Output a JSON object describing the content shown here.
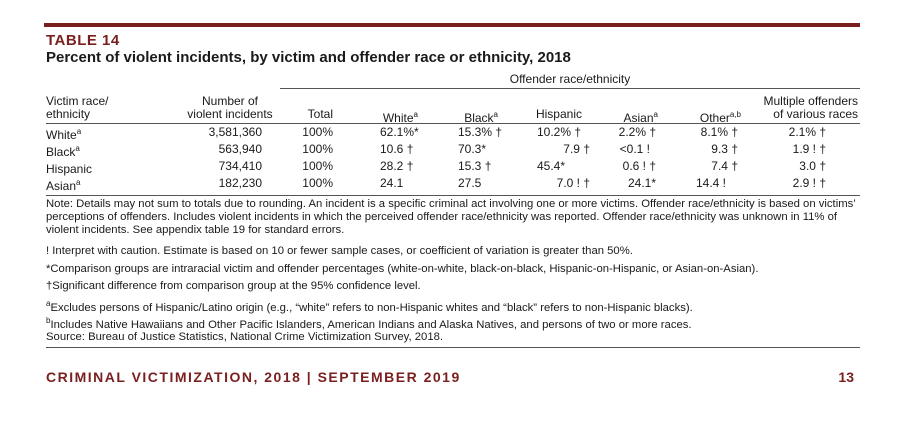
{
  "table_label": "TABLE 14",
  "table_title": "Percent of violent incidents, by victim and offender race or ethnicity, 2018",
  "group_header": "Offender race/ethnicity",
  "columns": {
    "victim_line1": "Victim race/",
    "victim_line2": "ethnicity",
    "number_line1": "Number of",
    "number_line2": "violent incidents",
    "total": "Total",
    "white": "White",
    "white_sup": "a",
    "black": "Black",
    "black_sup": "a",
    "hispanic": "Hispanic",
    "asian": "Asian",
    "asian_sup": "a",
    "other": "Other",
    "other_sup": "a,b",
    "multiple_line1": "Multiple offenders",
    "multiple_line2": "of various races"
  },
  "rows": [
    {
      "victim": "White",
      "victim_sup": "a",
      "number": "3,581,360",
      "total": "100%",
      "white": "62.1%*",
      "black": "15.3% †",
      "hispanic": "10.2% †",
      "asian": "2.2% †",
      "other": "8.1% †",
      "multiple": "2.1% †"
    },
    {
      "victim": "Black",
      "victim_sup": "a",
      "number": "563,940",
      "total": "100%",
      "white": "10.6 †",
      "black": "70.3*",
      "hispanic": "7.9 †",
      "asian": "<0.1 !",
      "other": "9.3 †",
      "multiple": "1.9 ! †"
    },
    {
      "victim": "Hispanic",
      "victim_sup": "",
      "number": "734,410",
      "total": "100%",
      "white": "28.2 †",
      "black": "15.3 †",
      "hispanic": "45.4*",
      "asian": "0.6 ! †",
      "other": "7.4 †",
      "multiple": "3.0 †"
    },
    {
      "victim": "Asian",
      "victim_sup": "a",
      "number": "182,230",
      "total": "100%",
      "white": "24.1",
      "black": "27.5",
      "hispanic": "7.0 ! †",
      "asian": "24.1*",
      "other": "14.4 !",
      "multiple": "2.9 ! †"
    }
  ],
  "notes": {
    "main": "Note: Details may not sum to totals due to rounding. An incident is a specific criminal act involving one or more victims. Offender race/ethnicity is based on victims’ perceptions of offenders. Includes violent incidents in which the perceived offender race/ethnicity was reported. Offender race/ethnicity was unknown in 11% of violent incidents. See appendix table 19 for standard errors.",
    "caution": "! Interpret with caution. Estimate is based on 10 or fewer sample cases, or coefficient of variation is greater than 50%.",
    "comparison": "*Comparison groups are intraracial victim and offender percentages (white-on-white, black-on-black, Hispanic-on-Hispanic, or Asian-on-Asian).",
    "significant": "†Significant difference from comparison group at the 95% confidence level.",
    "a_mark": "a",
    "a_text": "Excludes persons of Hispanic/Latino origin (e.g., “white” refers to non-Hispanic whites and “black” refers to non-Hispanic blacks).",
    "b_mark": "b",
    "b_text": "Includes Native Hawaiians and Other Pacific Islanders, American Indians and Alaska Natives, and persons of two or more races.",
    "source": "Source: Bureau of Justice Statistics, National Crime Victimization Survey, 2018."
  },
  "footer": {
    "text": "CRIMINAL VICTIMIZATION, 2018 | SEPTEMBER 2019",
    "page": "13"
  }
}
